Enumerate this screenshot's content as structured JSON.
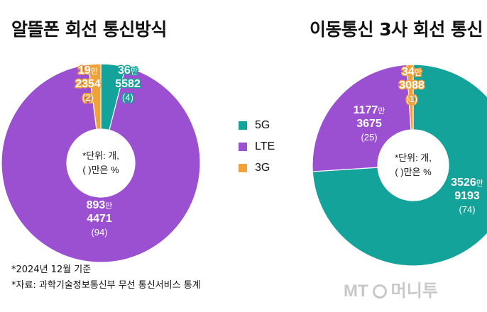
{
  "colors": {
    "g5": "#14a39a",
    "lte": "#9b4fd1",
    "g3": "#f0a13a"
  },
  "legend": [
    {
      "label": "5G",
      "color": "#14a39a"
    },
    {
      "label": "LTE",
      "color": "#9b4fd1"
    },
    {
      "label": "3G",
      "color": "#f0a13a"
    }
  ],
  "footnotes": {
    "date": "*2024년 12월 기준",
    "source": "*자료: 과학기술정보통신부 무선 통신서비스 통계"
  },
  "watermark": {
    "brand_prefix": "MT",
    "brand_name": "머니투"
  },
  "chart_data": [
    {
      "type": "pie",
      "title": "알뜰폰 회선 통신방식",
      "center_label_line1": "*단위: 개,",
      "center_label_line2": "(  )만은 %",
      "slices": [
        {
          "name": "5G",
          "value": 4,
          "label_man": "36",
          "man_unit": "만",
          "label_rest": "5582",
          "pct_label": "(4)",
          "color": "#14a39a"
        },
        {
          "name": "LTE",
          "value": 94,
          "label_man": "893",
          "man_unit": "만",
          "label_rest": "4471",
          "pct_label": "(94)",
          "color": "#9b4fd1"
        },
        {
          "name": "3G",
          "value": 2,
          "label_man": "19",
          "man_unit": "만",
          "label_rest": "2354",
          "pct_label": "(2)",
          "color": "#f0a13a"
        }
      ]
    },
    {
      "type": "pie",
      "title": "이동통신 3사 회선 통신",
      "center_label_line1": "*단위: 개,",
      "center_label_line2": "(  )만은 %",
      "slices": [
        {
          "name": "5G",
          "value": 74,
          "label_man": "3526",
          "man_unit": "만",
          "label_rest": "9193",
          "pct_label": "(74)",
          "color": "#14a39a"
        },
        {
          "name": "LTE",
          "value": 25,
          "label_man": "1177",
          "man_unit": "만",
          "label_rest": "3675",
          "pct_label": "(25)",
          "color": "#9b4fd1"
        },
        {
          "name": "3G",
          "value": 1,
          "label_man": "34",
          "man_unit": "만",
          "label_rest": "3088",
          "pct_label": "(1)",
          "color": "#f0a13a"
        }
      ]
    }
  ]
}
